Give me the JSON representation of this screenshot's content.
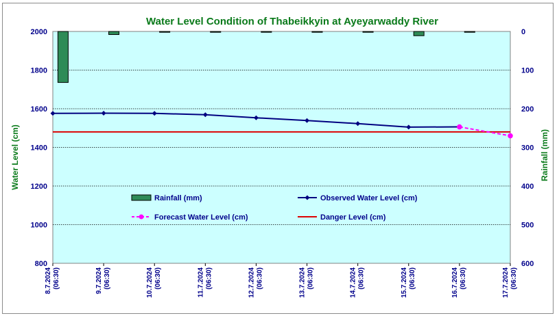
{
  "chart_data": {
    "type": "line",
    "title": "Water Level Condition of Thabeikkyin at Ayeyarwaddy River",
    "ylabel": "Water Level (cm)",
    "y2label": "Rainfall (mm)",
    "ylim": [
      800,
      2000
    ],
    "y2lim": [
      0,
      600
    ],
    "y2_inverted": true,
    "yticks": [
      "800",
      "1000",
      "1200",
      "1400",
      "1600",
      "1800",
      "2000"
    ],
    "y2ticks": [
      "0",
      "100",
      "200",
      "300",
      "400",
      "500",
      "600"
    ],
    "categories": [
      [
        "8.7.2024",
        "(06:30)"
      ],
      [
        "9.7.2024",
        "(06:30)"
      ],
      [
        "10.7.2024",
        "(06:30)"
      ],
      [
        "11.7.2024",
        "(06:30)"
      ],
      [
        "12.7.2024",
        "(06:30)"
      ],
      [
        "13.7.2024",
        "(06:30)"
      ],
      [
        "14.7.2024",
        "(06:30)"
      ],
      [
        "15.7.2024",
        "(06:30)"
      ],
      [
        "16.7.2024",
        "(06:30)"
      ],
      [
        "17.7.2024",
        "(06:30)"
      ]
    ],
    "series": [
      {
        "name": "Rainfall (mm)",
        "type": "bar",
        "axis": "right",
        "color": "#2e8b57",
        "values": [
          132,
          8,
          0,
          1,
          2,
          0,
          0,
          11,
          2,
          0
        ]
      },
      {
        "name": "Observed Water Level (cm)",
        "type": "line",
        "color": "#000080",
        "values": [
          1576,
          1577,
          1576,
          1569,
          1553,
          1539,
          1523,
          1505,
          1506,
          null
        ]
      },
      {
        "name": "Forecast Water Level (cm)",
        "type": "line",
        "dashed": true,
        "color": "#ff00ff",
        "values": [
          null,
          null,
          null,
          null,
          null,
          null,
          null,
          null,
          1506,
          1460
        ]
      },
      {
        "name": "Danger Level (cm)",
        "type": "line",
        "color": "#dd0000",
        "values": [
          1480,
          1480,
          1480,
          1480,
          1480,
          1480,
          1480,
          1480,
          1480,
          1480
        ]
      }
    ],
    "colors": {
      "plot_bg": "#ccffff",
      "grid": "#000000"
    },
    "grid": true,
    "legend": "inside-bottom"
  }
}
